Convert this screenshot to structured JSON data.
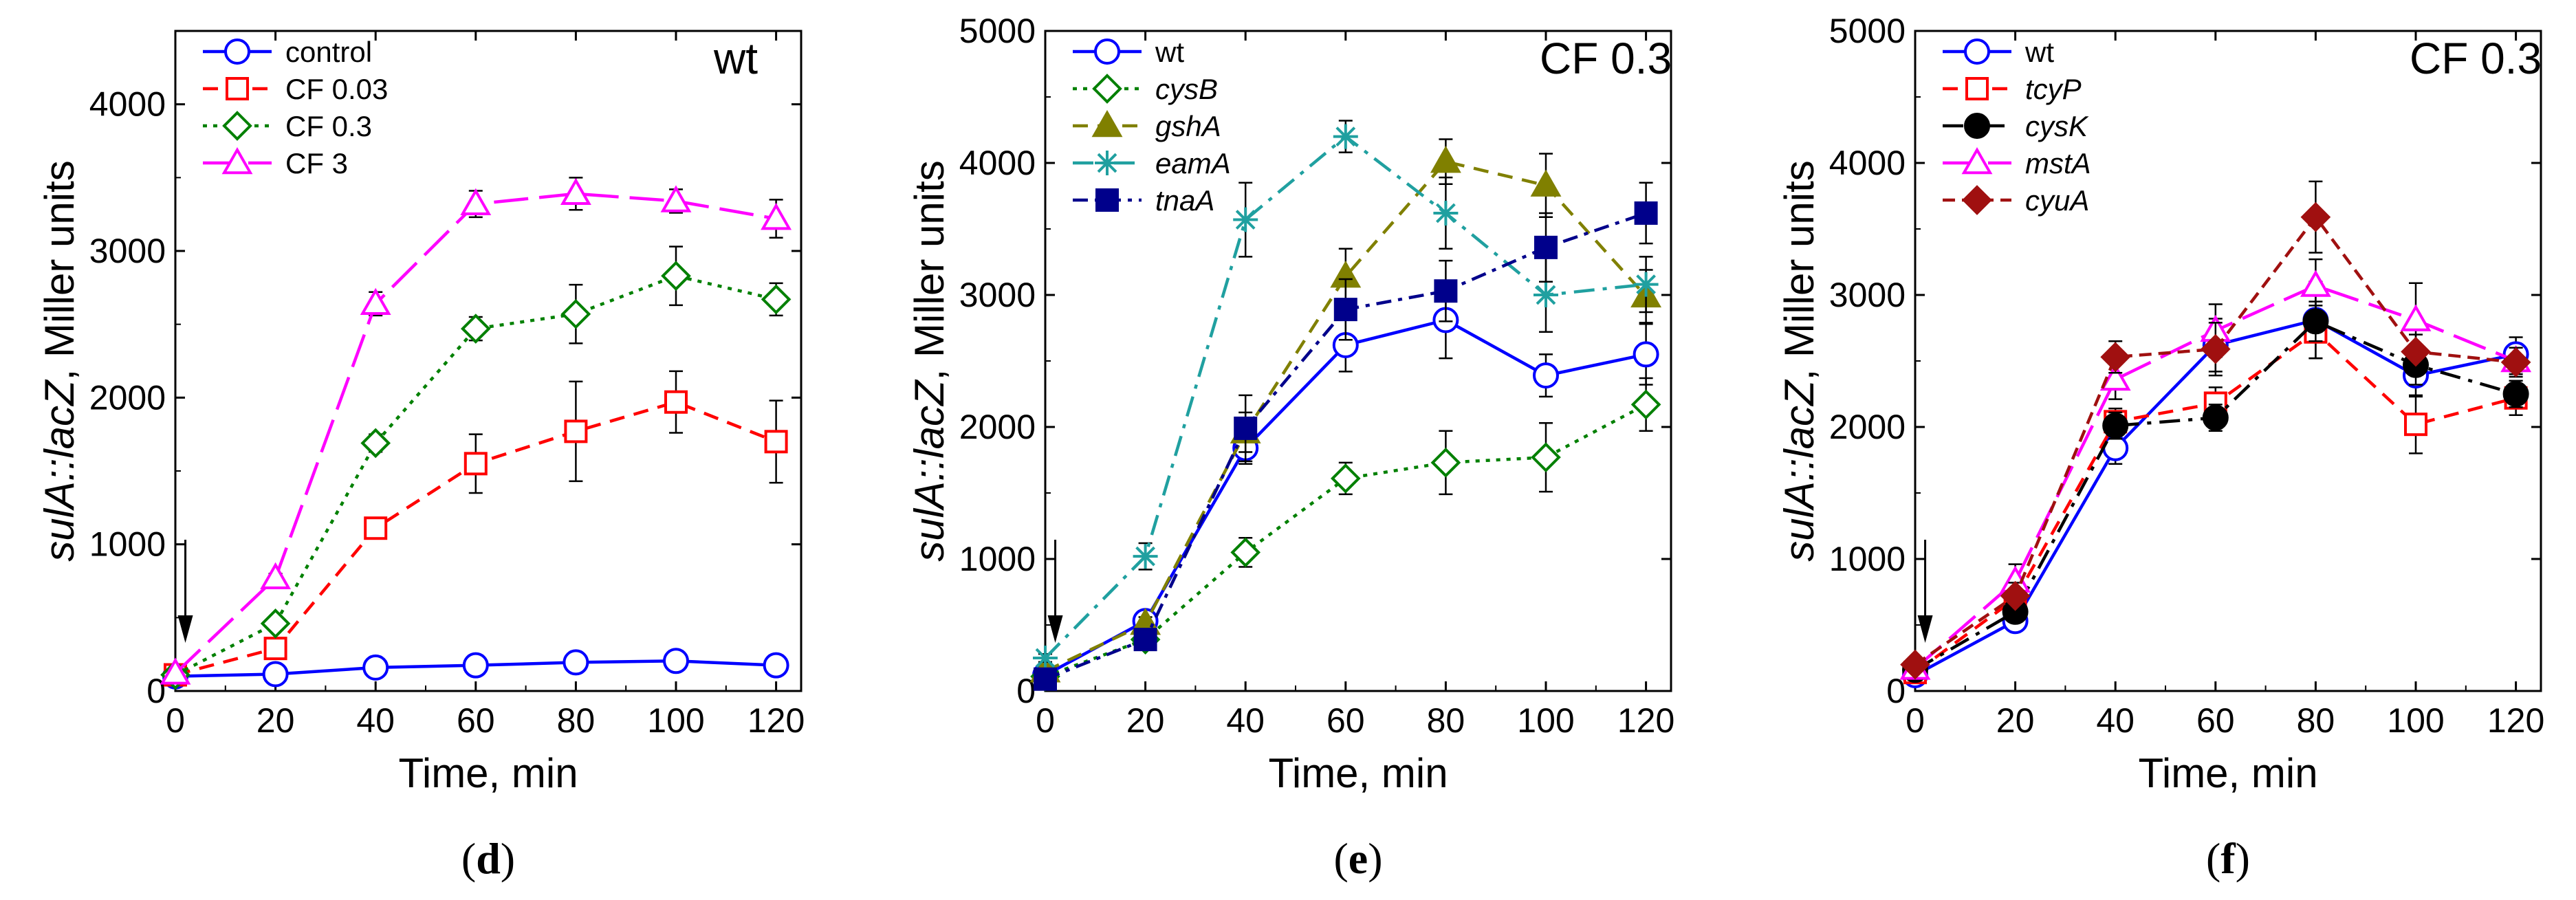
{
  "chart_data": [
    {
      "type": "line",
      "panel_label": "d",
      "title": "wt",
      "xlabel": "Time, min",
      "ylabel_italic": "sulA::lacZ",
      "ylabel_rest": ", Miller units",
      "x_ticks": [
        0,
        20,
        40,
        60,
        80,
        100,
        120
      ],
      "y_ticks": [
        0,
        1000,
        2000,
        3000,
        4000
      ],
      "xlim": [
        0,
        125
      ],
      "ylim": [
        0,
        4500
      ],
      "arrow_at_x": 2,
      "legend_position": "top-left",
      "series": [
        {
          "name": "control",
          "italic": false,
          "color": "#0000ff",
          "marker": "circle",
          "fill": false,
          "dash": "solid",
          "x": [
            0,
            20,
            40,
            60,
            80,
            100,
            120
          ],
          "y": [
            100,
            115,
            160,
            175,
            195,
            205,
            175
          ],
          "err": [
            20,
            20,
            30,
            30,
            30,
            30,
            20
          ]
        },
        {
          "name": "CF 0.03",
          "italic": false,
          "color": "#ff0000",
          "marker": "square",
          "fill": false,
          "dash": "dash",
          "x": [
            0,
            20,
            40,
            60,
            80,
            100,
            120
          ],
          "y": [
            110,
            290,
            1110,
            1550,
            1770,
            1970,
            1700
          ],
          "err": [
            20,
            40,
            60,
            200,
            340,
            210,
            280
          ]
        },
        {
          "name": "CF 0.3",
          "italic": false,
          "color": "#008000",
          "marker": "diamond",
          "fill": false,
          "dash": "dot",
          "x": [
            0,
            20,
            40,
            60,
            80,
            100,
            120
          ],
          "y": [
            110,
            460,
            1690,
            2470,
            2570,
            2830,
            2670
          ],
          "err": [
            20,
            40,
            60,
            80,
            200,
            200,
            110
          ]
        },
        {
          "name": "CF 3",
          "italic": false,
          "color": "#ff00ff",
          "marker": "triangle",
          "fill": false,
          "dash": "longdash",
          "x": [
            0,
            20,
            40,
            60,
            80,
            100,
            120
          ],
          "y": [
            120,
            770,
            2640,
            3320,
            3390,
            3340,
            3220
          ],
          "err": [
            20,
            30,
            80,
            90,
            110,
            80,
            130
          ]
        }
      ]
    },
    {
      "type": "line",
      "panel_label": "e",
      "title": "CF 0.3",
      "xlabel": "Time, min",
      "ylabel_italic": "sulA::lacZ",
      "ylabel_rest": ", Miller units",
      "x_ticks": [
        0,
        20,
        40,
        60,
        80,
        100,
        120
      ],
      "y_ticks": [
        0,
        1000,
        2000,
        3000,
        4000,
        5000
      ],
      "xlim": [
        0,
        125
      ],
      "ylim": [
        0,
        5000
      ],
      "arrow_at_x": 2,
      "legend_position": "top-left",
      "series": [
        {
          "name": "wt",
          "italic": false,
          "color": "#0000ff",
          "marker": "circle",
          "fill": false,
          "dash": "solid",
          "x": [
            0,
            20,
            40,
            60,
            80,
            100,
            120
          ],
          "y": [
            120,
            530,
            1840,
            2620,
            2810,
            2390,
            2550
          ],
          "err": [
            20,
            50,
            120,
            200,
            290,
            160,
            230
          ]
        },
        {
          "name": "cysB",
          "italic": true,
          "color": "#008000",
          "marker": "diamond",
          "fill": false,
          "dash": "dot",
          "x": [
            0,
            20,
            40,
            60,
            80,
            100,
            120
          ],
          "y": [
            110,
            390,
            1050,
            1610,
            1730,
            1770,
            2170
          ],
          "err": [
            20,
            40,
            110,
            120,
            240,
            260,
            200
          ]
        },
        {
          "name": "gshA",
          "italic": true,
          "color": "#808000",
          "marker": "triangle",
          "fill": true,
          "dash": "dash",
          "x": [
            0,
            20,
            40,
            60,
            80,
            100,
            120
          ],
          "y": [
            150,
            510,
            1960,
            3140,
            4010,
            3830,
            2990
          ],
          "err": [
            20,
            50,
            150,
            210,
            170,
            240,
            200
          ]
        },
        {
          "name": "eamA",
          "italic": true,
          "color": "#20a0a0",
          "marker": "asterisk",
          "fill": false,
          "dash": "dashdot",
          "x": [
            0,
            20,
            40,
            60,
            80,
            100,
            120
          ],
          "y": [
            250,
            1020,
            3570,
            4200,
            3620,
            3000,
            3080
          ],
          "err": [
            30,
            100,
            280,
            120,
            270,
            280,
            210
          ]
        },
        {
          "name": "tnaA",
          "italic": true,
          "color": "#00008b",
          "marker": "square",
          "fill": true,
          "dash": "dashdot2",
          "x": [
            0,
            20,
            40,
            60,
            80,
            100,
            120
          ],
          "y": [
            90,
            390,
            1990,
            2890,
            3030,
            3360,
            3620
          ],
          "err": [
            20,
            40,
            250,
            230,
            230,
            260,
            230
          ]
        }
      ]
    },
    {
      "type": "line",
      "panel_label": "f",
      "title": "CF 0.3",
      "xlabel": "Time, min",
      "ylabel_italic": "sulA::lacZ",
      "ylabel_rest": ", Miller units",
      "x_ticks": [
        0,
        20,
        40,
        60,
        80,
        100,
        120
      ],
      "y_ticks": [
        0,
        1000,
        2000,
        3000,
        4000,
        5000
      ],
      "xlim": [
        0,
        125
      ],
      "ylim": [
        0,
        5000
      ],
      "arrow_at_x": 2,
      "legend_position": "top-left",
      "series": [
        {
          "name": "wt",
          "italic": false,
          "color": "#0000ff",
          "marker": "circle",
          "fill": false,
          "dash": "solid",
          "x": [
            0,
            20,
            40,
            60,
            80,
            100,
            120
          ],
          "y": [
            120,
            530,
            1840,
            2620,
            2810,
            2390,
            2550
          ],
          "err": [
            20,
            50,
            120,
            200,
            290,
            160,
            130
          ]
        },
        {
          "name": "tcyP",
          "italic": true,
          "color": "#ff0000",
          "marker": "square",
          "fill": false,
          "dash": "dash",
          "x": [
            0,
            20,
            40,
            60,
            80,
            100,
            120
          ],
          "y": [
            140,
            700,
            2040,
            2180,
            2720,
            2020,
            2220
          ],
          "err": [
            20,
            120,
            100,
            120,
            200,
            220,
            130
          ]
        },
        {
          "name": "cysK",
          "italic": true,
          "color": "#000000",
          "marker": "circle",
          "fill": true,
          "dash": "dashdot",
          "x": [
            0,
            20,
            40,
            60,
            80,
            100,
            120
          ],
          "y": [
            160,
            600,
            2010,
            2070,
            2800,
            2470,
            2250
          ],
          "err": [
            20,
            60,
            100,
            100,
            150,
            150,
            100
          ]
        },
        {
          "name": "mstA",
          "italic": true,
          "color": "#ff00ff",
          "marker": "triangle",
          "fill": false,
          "dash": "longdash",
          "x": [
            0,
            20,
            40,
            60,
            80,
            100,
            120
          ],
          "y": [
            170,
            830,
            2360,
            2730,
            3070,
            2810,
            2500
          ],
          "err": [
            20,
            130,
            150,
            200,
            200,
            280,
            100
          ]
        },
        {
          "name": "cyuA",
          "italic": true,
          "color": "#a01010",
          "marker": "diamond",
          "fill": true,
          "dash": "dash2",
          "x": [
            0,
            20,
            40,
            60,
            80,
            100,
            120
          ],
          "y": [
            200,
            720,
            2530,
            2590,
            3590,
            2570,
            2490
          ],
          "err": [
            20,
            100,
            120,
            200,
            270,
            130,
            110
          ]
        }
      ]
    }
  ]
}
